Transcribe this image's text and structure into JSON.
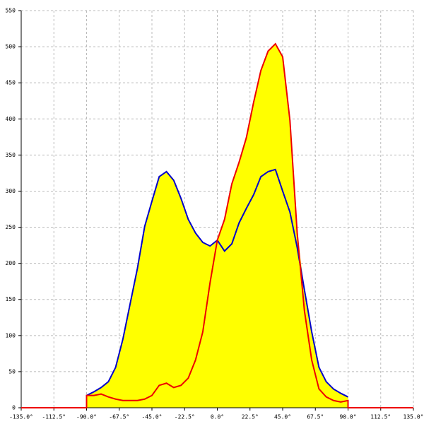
{
  "chart_data": {
    "type": "area",
    "x": [
      -135,
      -90,
      -90,
      -85,
      -80,
      -75,
      -70,
      -65,
      -60,
      -55,
      -50,
      -45,
      -40,
      -35,
      -30,
      -25,
      -20,
      -15,
      -10,
      -5,
      0,
      5,
      10,
      15,
      20,
      25,
      30,
      35,
      40,
      45,
      50,
      55,
      60,
      65,
      70,
      75,
      80,
      85,
      90,
      90,
      135
    ],
    "series": [
      {
        "color": "#0000cc",
        "values": [
          null,
          null,
          17,
          22,
          28,
          36,
          56,
          95,
          144,
          193,
          251,
          286,
          320,
          327,
          315,
          290,
          261,
          242,
          229,
          224,
          232,
          217,
          227,
          256,
          276,
          295,
          320,
          327,
          330,
          300,
          271,
          222,
          163,
          105,
          56,
          36,
          26,
          20,
          15,
          null,
          null
        ]
      },
      {
        "color": "#ee0000",
        "values": [
          0,
          0,
          17,
          17,
          19,
          15,
          12,
          10,
          10,
          10,
          12,
          17,
          31,
          34,
          28,
          31,
          41,
          66,
          105,
          173,
          232,
          261,
          310,
          340,
          374,
          423,
          467,
          494,
          504,
          486,
          398,
          242,
          134,
          66,
          26,
          15,
          10,
          8,
          10,
          0,
          0
        ]
      }
    ],
    "fill": "#ffff00",
    "xlim": [
      -135,
      135
    ],
    "ylim": [
      0,
      550
    ],
    "xticks": [
      {
        "value": -135,
        "label": "-135.0°"
      },
      {
        "value": -112.5,
        "label": "-112.5°"
      },
      {
        "value": -90,
        "label": "-90.0°"
      },
      {
        "value": -67.5,
        "label": "-67.5°"
      },
      {
        "value": -45,
        "label": "-45.0°"
      },
      {
        "value": -22.5,
        "label": "-22.5°"
      },
      {
        "value": 0,
        "label": "0.0°"
      },
      {
        "value": 22.5,
        "label": "22.5°"
      },
      {
        "value": 45,
        "label": "45.0°"
      },
      {
        "value": 67.5,
        "label": "67.5°"
      },
      {
        "value": 90,
        "label": "90.0°"
      },
      {
        "value": 112.5,
        "label": "112.5°"
      },
      {
        "value": 135,
        "label": "135.0°"
      }
    ],
    "yticks": [
      0,
      50,
      100,
      150,
      200,
      250,
      300,
      350,
      400,
      450,
      500,
      550
    ],
    "grid": true
  }
}
